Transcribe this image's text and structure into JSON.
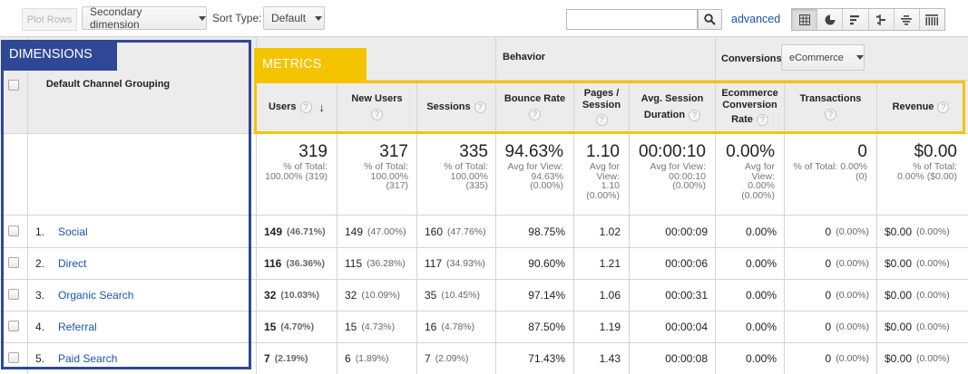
{
  "toolbar": {
    "plot_rows": "Plot Rows",
    "secondary_dimension": "Secondary dimension",
    "sort_type_label": "Sort Type:",
    "sort_type_value": "Default",
    "search_value": "",
    "advanced": "advanced",
    "view_icons": [
      "table-view-icon",
      "pie-view-icon",
      "performance-view-icon",
      "comparison-view-icon",
      "term-cloud-view-icon",
      "pivot-view-icon"
    ]
  },
  "annotations": {
    "dimensions": "DIMENSIONS",
    "metrics": "METRICS",
    "dimensions_color": "#2f4896",
    "metrics_color": "#f5c400"
  },
  "groups": {
    "behavior": "Behavior",
    "conversions": "Conversions",
    "conversions_select": "eCommerce"
  },
  "columns": {
    "dimension": "Default Channel Grouping",
    "users": "Users",
    "new_users": "New Users",
    "sessions": "Sessions",
    "bounce_rate": "Bounce Rate",
    "pages_session_1": "Pages /",
    "pages_session_2": "Session",
    "avg_session_1": "Avg. Session",
    "avg_session_2": "Duration",
    "ecom_1": "Ecommerce",
    "ecom_2": "Conversion",
    "ecom_3": "Rate",
    "transactions": "Transactions",
    "revenue": "Revenue",
    "help": "?",
    "sort_arrow": "↓"
  },
  "totals": {
    "users": {
      "value": "319",
      "l1": "% of Total:",
      "l2": "100.00% (319)"
    },
    "new_users": {
      "value": "317",
      "l1": "% of Total:",
      "l2": "100.00%",
      "l3": "(317)"
    },
    "sessions": {
      "value": "335",
      "l1": "% of Total:",
      "l2": "100.00%",
      "l3": "(335)"
    },
    "bounce_rate": {
      "value": "94.63%",
      "l1": "Avg for View:",
      "l2": "94.63%",
      "l3": "(0.00%)"
    },
    "pages_session": {
      "value": "1.10",
      "l1": "Avg for",
      "l2": "View:",
      "l3": "1.10",
      "l4": "(0.00%)"
    },
    "avg_session": {
      "value": "00:00:10",
      "l1": "Avg for View:",
      "l2": "00:00:10",
      "l3": "(0.00%)"
    },
    "ecom_rate": {
      "value": "0.00%",
      "l1": "Avg for",
      "l2": "View:",
      "l3": "0.00%",
      "l4": "(0.00%)"
    },
    "transactions": {
      "value": "0",
      "l1": "% of Total: 0.00%",
      "l2": "(0)"
    },
    "revenue": {
      "value": "$0.00",
      "l1": "% of Total:",
      "l2": "0.00% ($0.00)"
    }
  },
  "rows": [
    {
      "num": "1.",
      "channel": "Social",
      "users": "149",
      "users_pct": "(46.71%)",
      "new_users": "149",
      "new_users_pct": "(47.00%)",
      "sessions": "160",
      "sessions_pct": "(47.76%)",
      "bounce": "98.75%",
      "pages": "1.02",
      "duration": "00:00:09",
      "ecom": "0.00%",
      "trans": "0",
      "trans_pct": "(0.00%)",
      "revenue": "$0.00",
      "revenue_pct": "(0.00%)"
    },
    {
      "num": "2.",
      "channel": "Direct",
      "users": "116",
      "users_pct": "(36.36%)",
      "new_users": "115",
      "new_users_pct": "(36.28%)",
      "sessions": "117",
      "sessions_pct": "(34.93%)",
      "bounce": "90.60%",
      "pages": "1.21",
      "duration": "00:00:06",
      "ecom": "0.00%",
      "trans": "0",
      "trans_pct": "(0.00%)",
      "revenue": "$0.00",
      "revenue_pct": "(0.00%)"
    },
    {
      "num": "3.",
      "channel": "Organic Search",
      "users": "32",
      "users_pct": "(10.03%)",
      "new_users": "32",
      "new_users_pct": "(10.09%)",
      "sessions": "35",
      "sessions_pct": "(10.45%)",
      "bounce": "97.14%",
      "pages": "1.06",
      "duration": "00:00:31",
      "ecom": "0.00%",
      "trans": "0",
      "trans_pct": "(0.00%)",
      "revenue": "$0.00",
      "revenue_pct": "(0.00%)"
    },
    {
      "num": "4.",
      "channel": "Referral",
      "users": "15",
      "users_pct": "(4.70%)",
      "new_users": "15",
      "new_users_pct": "(4.73%)",
      "sessions": "16",
      "sessions_pct": "(4.78%)",
      "bounce": "87.50%",
      "pages": "1.19",
      "duration": "00:00:04",
      "ecom": "0.00%",
      "trans": "0",
      "trans_pct": "(0.00%)",
      "revenue": "$0.00",
      "revenue_pct": "(0.00%)"
    },
    {
      "num": "5.",
      "channel": "Paid Search",
      "users": "7",
      "users_pct": "(2.19%)",
      "new_users": "6",
      "new_users_pct": "(1.89%)",
      "sessions": "7",
      "sessions_pct": "(2.09%)",
      "bounce": "71.43%",
      "pages": "1.43",
      "duration": "00:00:08",
      "ecom": "0.00%",
      "trans": "0",
      "trans_pct": "(0.00%)",
      "revenue": "$0.00",
      "revenue_pct": "(0.00%)"
    }
  ]
}
